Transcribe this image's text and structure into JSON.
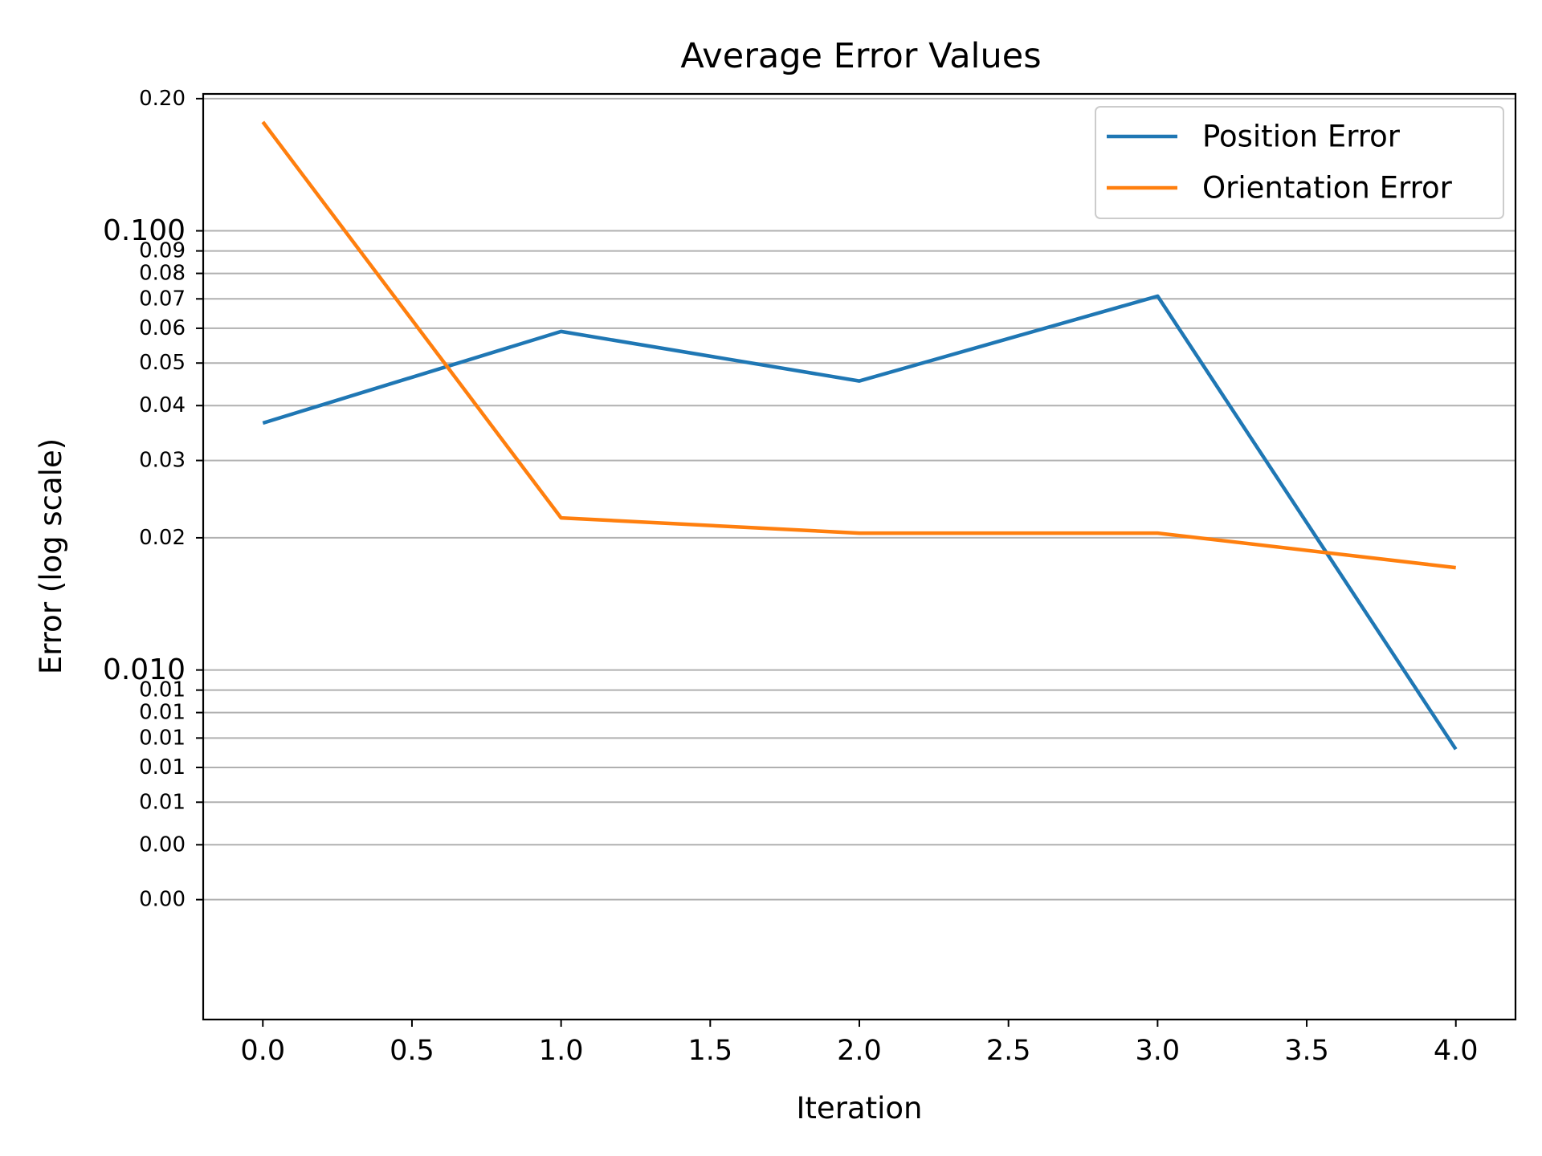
{
  "chart_data": {
    "type": "line",
    "title": "Average Error Values",
    "xlabel": "Iteration",
    "ylabel": "Error (log scale)",
    "yscale": "log",
    "xlim": [
      -0.2,
      4.2
    ],
    "ylim": [
      0.0016,
      0.205
    ],
    "grid": "y",
    "legend_position": "top-right",
    "x": [
      0,
      1,
      2,
      3,
      4
    ],
    "x_ticks": [
      {
        "value": 0.0,
        "label": "0.0"
      },
      {
        "value": 0.5,
        "label": "0.5"
      },
      {
        "value": 1.0,
        "label": "1.0"
      },
      {
        "value": 1.5,
        "label": "1.5"
      },
      {
        "value": 2.0,
        "label": "2.0"
      },
      {
        "value": 2.5,
        "label": "2.5"
      },
      {
        "value": 3.0,
        "label": "3.0"
      },
      {
        "value": 3.5,
        "label": "3.5"
      },
      {
        "value": 4.0,
        "label": "4.0"
      }
    ],
    "y_ticks": [
      {
        "value": 0.2,
        "label": "0.20",
        "major": false
      },
      {
        "value": 0.1,
        "label": "0.100",
        "major": true
      },
      {
        "value": 0.09,
        "label": "0.09",
        "major": false
      },
      {
        "value": 0.08,
        "label": "0.08",
        "major": false
      },
      {
        "value": 0.07,
        "label": "0.07",
        "major": false
      },
      {
        "value": 0.06,
        "label": "0.06",
        "major": false
      },
      {
        "value": 0.05,
        "label": "0.05",
        "major": false
      },
      {
        "value": 0.04,
        "label": "0.04",
        "major": false
      },
      {
        "value": 0.03,
        "label": "0.03",
        "major": false
      },
      {
        "value": 0.02,
        "label": "0.02",
        "major": false
      },
      {
        "value": 0.01,
        "label": "0.010",
        "major": true
      },
      {
        "value": 0.009,
        "label": "0.01",
        "major": false
      },
      {
        "value": 0.008,
        "label": "0.01",
        "major": false
      },
      {
        "value": 0.007,
        "label": "0.01",
        "major": false
      },
      {
        "value": 0.006,
        "label": "0.01",
        "major": false
      },
      {
        "value": 0.005,
        "label": "0.01",
        "major": false
      },
      {
        "value": 0.004,
        "label": "0.00",
        "major": false
      },
      {
        "value": 0.003,
        "label": "0.00",
        "major": false
      }
    ],
    "series": [
      {
        "name": "Position Error",
        "color": "#1f77b4",
        "values": [
          0.0365,
          0.059,
          0.0455,
          0.071,
          0.0066
        ]
      },
      {
        "name": "Orientation Error",
        "color": "#ff7f0e",
        "values": [
          0.177,
          0.0222,
          0.0205,
          0.0205,
          0.0171
        ]
      }
    ]
  }
}
